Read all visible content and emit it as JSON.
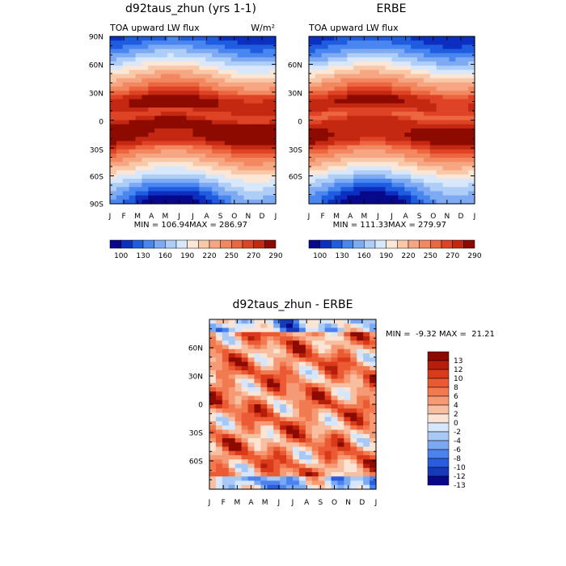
{
  "chart_data": [
    {
      "type": "heatmap",
      "title": "d92taus_zhun (yrs 1-1)",
      "left_label": "TOA upward LW flux",
      "units": "W/m²",
      "x_ticks": [
        "J",
        "F",
        "M",
        "A",
        "M",
        "J",
        "J",
        "A",
        "S",
        "O",
        "N",
        "D",
        "J"
      ],
      "y_ticks": [
        "90N",
        "60N",
        "30N",
        "0",
        "30S",
        "60S",
        "90S"
      ],
      "min_label": "MIN = 106.94",
      "max_label": "MAX = 286.97",
      "min": 106.94,
      "max": 286.97,
      "colorbar_labels": [
        "100",
        "130",
        "160",
        "190",
        "220",
        "250",
        "270",
        "290"
      ]
    },
    {
      "type": "heatmap",
      "title": "ERBE",
      "left_label": "TOA upward LW flux",
      "x_ticks": [
        "J",
        "F",
        "M",
        "A",
        "M",
        "J",
        "J",
        "A",
        "S",
        "O",
        "N",
        "D",
        "J"
      ],
      "y_ticks": [
        "60N",
        "30N",
        "0",
        "30S",
        "60S"
      ],
      "min_label": "MIN = 111.33",
      "max_label": "MAX = 279.97",
      "min": 111.33,
      "max": 279.97,
      "colorbar_labels": [
        "100",
        "130",
        "160",
        "190",
        "220",
        "250",
        "270",
        "290"
      ]
    },
    {
      "type": "heatmap",
      "title": "d92taus_zhun - ERBE",
      "x_ticks": [
        "J",
        "F",
        "M",
        "A",
        "M",
        "J",
        "J",
        "A",
        "S",
        "O",
        "N",
        "D",
        "J"
      ],
      "y_ticks": [
        "60N",
        "30N",
        "0",
        "30S",
        "60S"
      ],
      "stats_label": "MIN =  -9.32 MAX =  21.21",
      "min": -9.32,
      "max": 21.21,
      "colorbar_labels": [
        "13",
        "12",
        "10",
        "8",
        "6",
        "4",
        "2",
        "0",
        "-2",
        "-4",
        "-6",
        "-8",
        "-10",
        "-12",
        "-13"
      ]
    }
  ],
  "colors": {
    "flux_scale": [
      "#08088c",
      "#0c2fc0",
      "#1f5ce0",
      "#4a86f0",
      "#7eaaf4",
      "#aecdf7",
      "#d8e8fa",
      "#fce6d6",
      "#f9c8a8",
      "#f6a682",
      "#f28760",
      "#ec6640",
      "#df4326",
      "#c42810",
      "#8c0a00"
    ],
    "diff_scale": [
      "#8c0a00",
      "#b41e0a",
      "#d83a1a",
      "#ec5a34",
      "#f27a50",
      "#f59a74",
      "#f8bea0",
      "#fce4d4",
      "#d6e6fb",
      "#a8c8f6",
      "#7aa8f2",
      "#4c82ee",
      "#2a5ce0",
      "#143ab8",
      "#08088c"
    ]
  }
}
